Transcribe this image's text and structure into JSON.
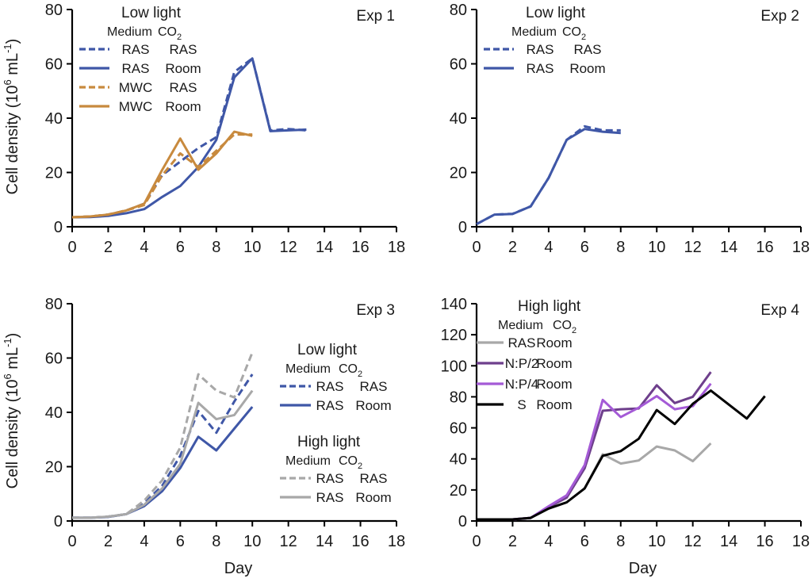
{
  "chart_data": [
    {
      "type": "line",
      "panel": "Exp 1",
      "title": "Exp 1",
      "xlabel": "",
      "ylabel": "Cell density (10^6 mL^-1)",
      "xlim": [
        0,
        18
      ],
      "ylim": [
        0,
        80
      ],
      "xticks": [
        0,
        2,
        4,
        6,
        8,
        10,
        12,
        14,
        16,
        18
      ],
      "yticks": [
        0,
        20,
        40,
        60,
        80
      ],
      "grid": false,
      "legend": {
        "placement": "top-left",
        "groups": [
          {
            "title": "Low light",
            "header": [
              "Medium",
              "CO2"
            ],
            "entries": [
              {
                "series": "RAS-RAS",
                "medium": "RAS",
                "co2": "RAS"
              },
              {
                "series": "RAS-Room",
                "medium": "RAS",
                "co2": "Room"
              },
              {
                "series": "MWC-RAS",
                "medium": "MWC",
                "co2": "RAS"
              },
              {
                "series": "MWC-Room",
                "medium": "MWC",
                "co2": "Room"
              }
            ]
          }
        ]
      },
      "series": [
        {
          "name": "RAS-RAS",
          "color": "#3f57a7",
          "dash": true,
          "x": [
            0,
            1,
            2,
            3,
            4,
            5,
            6,
            7,
            8,
            9,
            10,
            11,
            12,
            13
          ],
          "y": [
            3.5,
            3.8,
            4.5,
            6,
            8.5,
            19,
            24,
            29,
            33,
            57,
            62,
            35.5,
            36,
            35.5
          ]
        },
        {
          "name": "RAS-Room",
          "color": "#3f57a7",
          "dash": false,
          "x": [
            0,
            1,
            2,
            3,
            4,
            5,
            6,
            7,
            8,
            9,
            10,
            11,
            12,
            13
          ],
          "y": [
            3.5,
            3.6,
            4.0,
            5.0,
            6.5,
            11,
            15,
            22,
            32,
            55,
            62,
            35.2,
            35.5,
            35.8
          ]
        },
        {
          "name": "MWC-RAS",
          "color": "#c88a3e",
          "dash": true,
          "x": [
            0,
            1,
            2,
            3,
            4,
            5,
            6,
            7,
            8,
            9,
            10
          ],
          "y": [
            3.5,
            3.8,
            4.5,
            6,
            8,
            19,
            27,
            22,
            28,
            34,
            34
          ]
        },
        {
          "name": "MWC-Room",
          "color": "#c88a3e",
          "dash": false,
          "x": [
            0,
            1,
            2,
            3,
            4,
            5,
            6,
            7,
            8,
            9,
            10
          ],
          "y": [
            3.5,
            3.8,
            4.5,
            6,
            8.5,
            21,
            32.5,
            21,
            27,
            35,
            33.5
          ]
        }
      ]
    },
    {
      "type": "line",
      "panel": "Exp 2",
      "title": "Exp 2",
      "xlabel": "",
      "ylabel": "",
      "xlim": [
        0,
        18
      ],
      "ylim": [
        0,
        80
      ],
      "xticks": [
        0,
        2,
        4,
        6,
        8,
        10,
        12,
        14,
        16,
        18
      ],
      "yticks": [
        0,
        20,
        40,
        60,
        80
      ],
      "grid": false,
      "legend": {
        "placement": "top-left",
        "groups": [
          {
            "title": "Low light",
            "header": [
              "Medium",
              "CO2"
            ],
            "entries": [
              {
                "series": "RAS-RAS",
                "medium": "RAS",
                "co2": "RAS"
              },
              {
                "series": "RAS-Room",
                "medium": "RAS",
                "co2": "Room"
              }
            ]
          }
        ]
      },
      "series": [
        {
          "name": "RAS-RAS",
          "color": "#3f57a7",
          "dash": true,
          "x": [
            0,
            1,
            2,
            3,
            4,
            5,
            6,
            7,
            8
          ],
          "y": [
            1,
            4.5,
            4.8,
            7.5,
            18,
            32,
            37,
            35.5,
            35.5
          ]
        },
        {
          "name": "RAS-Room",
          "color": "#3f57a7",
          "dash": false,
          "x": [
            0,
            1,
            2,
            3,
            4,
            5,
            6,
            7,
            8
          ],
          "y": [
            1,
            4.5,
            4.7,
            7.5,
            18,
            32,
            36,
            35,
            34.5
          ]
        }
      ]
    },
    {
      "type": "line",
      "panel": "Exp 3",
      "title": "Exp 3",
      "xlabel": "Day",
      "ylabel": "Cell density (10^6 mL^-1)",
      "xlim": [
        0,
        18
      ],
      "ylim": [
        0,
        80
      ],
      "xticks": [
        0,
        2,
        4,
        6,
        8,
        10,
        12,
        14,
        16,
        18
      ],
      "yticks": [
        0,
        20,
        40,
        60,
        80
      ],
      "grid": false,
      "legend": {
        "placement": "right",
        "groups": [
          {
            "title": "Low light",
            "header": [
              "Medium",
              "CO2"
            ],
            "entries": [
              {
                "series": "LL-RAS-RAS",
                "medium": "RAS",
                "co2": "RAS"
              },
              {
                "series": "LL-RAS-Room",
                "medium": "RAS",
                "co2": "Room"
              }
            ]
          },
          {
            "title": "High light",
            "header": [
              "Medium",
              "CO2"
            ],
            "entries": [
              {
                "series": "HL-RAS-RAS",
                "medium": "RAS",
                "co2": "RAS"
              },
              {
                "series": "HL-RAS-Room",
                "medium": "RAS",
                "co2": "Room"
              }
            ]
          }
        ]
      },
      "series": [
        {
          "name": "LL-RAS-RAS",
          "color": "#3f57a7",
          "dash": true,
          "x": [
            0,
            1,
            2,
            3,
            4,
            5,
            6,
            7,
            8,
            9,
            10
          ],
          "y": [
            1.2,
            1.2,
            1.6,
            2.5,
            6.5,
            13,
            24,
            40.5,
            32.5,
            44,
            54
          ]
        },
        {
          "name": "LL-RAS-Room",
          "color": "#3f57a7",
          "dash": false,
          "x": [
            0,
            1,
            2,
            3,
            4,
            5,
            6,
            7,
            8,
            9,
            10
          ],
          "y": [
            1.2,
            1.2,
            1.5,
            2.5,
            5.5,
            11,
            19.5,
            31,
            26,
            34,
            42
          ]
        },
        {
          "name": "HL-RAS-RAS",
          "color": "#a8a8a8",
          "dash": true,
          "x": [
            0,
            1,
            2,
            3,
            4,
            5,
            6,
            7,
            8,
            9,
            10
          ],
          "y": [
            1.2,
            1.2,
            1.6,
            2.5,
            7.5,
            15,
            27,
            54,
            48,
            45.5,
            62
          ]
        },
        {
          "name": "HL-RAS-Room",
          "color": "#a8a8a8",
          "dash": false,
          "x": [
            0,
            1,
            2,
            3,
            4,
            5,
            6,
            7,
            8,
            9,
            10
          ],
          "y": [
            1.2,
            1.2,
            1.6,
            2.5,
            6,
            12,
            21,
            43.5,
            37.5,
            39,
            48
          ]
        }
      ]
    },
    {
      "type": "line",
      "panel": "Exp 4",
      "title": "Exp 4",
      "xlabel": "Day",
      "ylabel": "",
      "xlim": [
        0,
        18
      ],
      "ylim": [
        0,
        140
      ],
      "xticks": [
        0,
        2,
        4,
        6,
        8,
        10,
        12,
        14,
        16,
        18
      ],
      "yticks": [
        0,
        20,
        40,
        60,
        80,
        100,
        120,
        140
      ],
      "grid": false,
      "legend": {
        "placement": "top-left",
        "groups": [
          {
            "title": "High light",
            "header": [
              "Medium",
              "CO2"
            ],
            "entries": [
              {
                "series": "RAS-Room",
                "medium": "RAS",
                "co2": "Room"
              },
              {
                "series": "N:P/2-Room",
                "medium": "N:P/2",
                "co2": "Room"
              },
              {
                "series": "N:P/4-Room",
                "medium": "N:P/4",
                "co2": "Room"
              },
              {
                "series": "S-Room",
                "medium": "S",
                "co2": "Room"
              }
            ]
          }
        ]
      },
      "series": [
        {
          "name": "RAS-Room",
          "color": "#a8a8a8",
          "dash": false,
          "x": [
            0,
            1,
            2,
            3,
            4,
            5,
            6,
            7,
            8,
            9,
            10,
            11,
            12,
            13
          ],
          "y": [
            1,
            1,
            1,
            2,
            8,
            12,
            21,
            43,
            37,
            39,
            48,
            45.5,
            38.5,
            50
          ]
        },
        {
          "name": "N:P/2-Room",
          "color": "#6e3f8c",
          "dash": false,
          "x": [
            0,
            1,
            2,
            3,
            4,
            5,
            6,
            7,
            8,
            9,
            10,
            11,
            12,
            13
          ],
          "y": [
            1,
            1,
            1,
            2,
            9,
            15,
            34,
            71,
            72,
            72.5,
            87.5,
            76,
            80,
            96
          ]
        },
        {
          "name": "N:P/4-Room",
          "color": "#a45ad6",
          "dash": false,
          "x": [
            0,
            1,
            2,
            3,
            4,
            5,
            6,
            7,
            8,
            9,
            10,
            11,
            12,
            13
          ],
          "y": [
            1,
            1,
            1,
            2,
            9.5,
            16.5,
            36,
            78,
            67,
            73,
            80.5,
            72,
            74,
            88.5
          ]
        },
        {
          "name": "S-Room",
          "color": "#000000",
          "dash": false,
          "x": [
            0,
            1,
            2,
            3,
            4,
            5,
            6,
            7,
            8,
            9,
            10,
            11,
            12,
            13,
            15,
            16
          ],
          "y": [
            1,
            1,
            1,
            2,
            8,
            12,
            21,
            42,
            45,
            53,
            71.5,
            62.5,
            75.5,
            84,
            66,
            80.5
          ]
        }
      ]
    }
  ]
}
